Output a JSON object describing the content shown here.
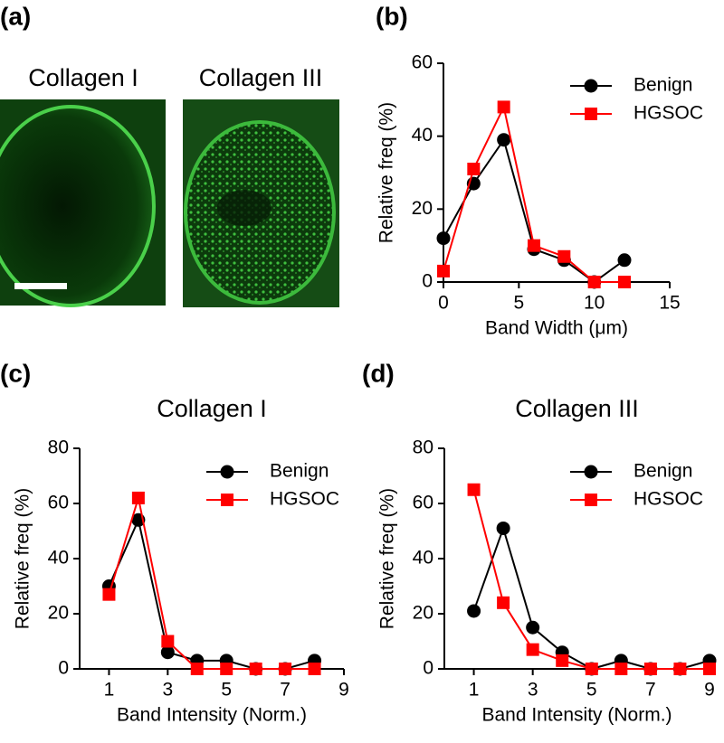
{
  "image_panel": {
    "label": "(a)",
    "captions": [
      "Collagen I",
      "Collagen III"
    ]
  },
  "chart_data": [
    {
      "type": "line",
      "panel_label": "(b)",
      "x_label": "Band  Width (μm)",
      "y_label": "Relative freq (%)",
      "x": [
        0,
        2,
        4,
        6,
        8,
        10,
        12
      ],
      "series": [
        {
          "name": "Benign",
          "color": "#000000",
          "marker": "circle",
          "values": [
            12,
            27,
            39,
            9,
            6,
            0,
            6
          ]
        },
        {
          "name": "HGSOC",
          "color": "#ff0000",
          "marker": "square",
          "values": [
            3,
            31,
            48,
            10,
            7,
            0,
            0
          ]
        }
      ],
      "xlim": [
        0,
        15
      ],
      "xticks": [
        0,
        5,
        10,
        15
      ],
      "ylim": [
        0,
        60
      ],
      "yticks": [
        0,
        20,
        40,
        60
      ],
      "legend": "top-right"
    },
    {
      "type": "line",
      "panel_label": "(c)",
      "title": "Collagen I",
      "x_label": "Band Intensity (Norm.)",
      "y_label": "Relative freq (%)",
      "x": [
        1,
        2,
        3,
        4,
        5,
        6,
        7,
        8
      ],
      "series": [
        {
          "name": "Benign",
          "color": "#000000",
          "marker": "circle",
          "values": [
            30,
            54,
            6,
            3,
            3,
            0,
            0,
            3
          ]
        },
        {
          "name": "HGSOC",
          "color": "#ff0000",
          "marker": "square",
          "values": [
            27,
            62,
            10,
            0,
            0,
            0,
            0,
            0
          ]
        }
      ],
      "xlim": [
        0,
        9
      ],
      "xticks": [
        1,
        3,
        5,
        7,
        9
      ],
      "ylim": [
        0,
        80
      ],
      "yticks": [
        0,
        20,
        40,
        60,
        80
      ],
      "legend": "top-right"
    },
    {
      "type": "line",
      "panel_label": "(d)",
      "title": "Collagen III",
      "x_label": "Band Intensity (Norm.)",
      "y_label": "Relative freq (%)",
      "x": [
        1,
        2,
        3,
        4,
        5,
        6,
        7,
        8,
        9
      ],
      "series": [
        {
          "name": "Benign",
          "color": "#000000",
          "marker": "circle",
          "values": [
            21,
            51,
            15,
            6,
            0,
            3,
            0,
            0,
            3
          ]
        },
        {
          "name": "HGSOC",
          "color": "#ff0000",
          "marker": "square",
          "values": [
            65,
            24,
            7,
            3,
            0,
            0,
            0,
            0,
            0
          ]
        }
      ],
      "xlim": [
        0,
        9
      ],
      "xticks": [
        1,
        3,
        5,
        7,
        9
      ],
      "ylim": [
        0,
        80
      ],
      "yticks": [
        0,
        20,
        40,
        60,
        80
      ],
      "legend": "top-right"
    }
  ]
}
